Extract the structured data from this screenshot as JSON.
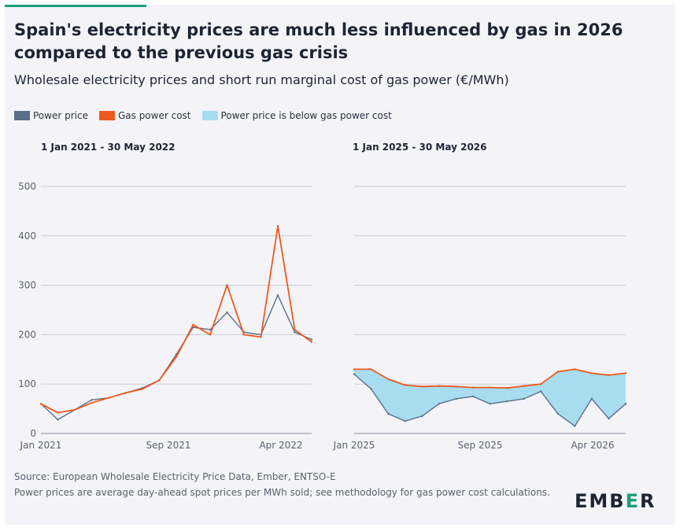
{
  "title": "Spain's electricity prices are much less influenced by gas in 2026 compared to the previous gas crisis",
  "subtitle": "Wholesale electricity prices and short run marginal cost of gas power (€/MWh)",
  "legend": [
    {
      "label": "Power price",
      "color": "#5b6f8b"
    },
    {
      "label": "Gas power cost",
      "color": "#ec5a1e"
    },
    {
      "label": "Power price is below gas power cost",
      "color": "#a8dcef"
    }
  ],
  "footer": {
    "source": "Source: European Wholesale Electricity Price Data, Ember, ENTSO-E",
    "note": "Power prices are average day-ahead spot prices per MWh sold; see methodology for gas power cost calculations."
  },
  "logo": {
    "pre": "EMB",
    "mid": "E",
    "post": "R"
  },
  "chart_data": [
    {
      "type": "line",
      "title": "1 Jan 2021 - 30 May 2022",
      "ylim": [
        0,
        550
      ],
      "yticks": [
        0,
        100,
        200,
        300,
        400,
        500
      ],
      "xticks": [
        "Jan 2021",
        "Sep 2021",
        "Apr 2022"
      ],
      "grid": true,
      "x": [
        "Jan 2021",
        "Feb 2021",
        "Mar 2021",
        "Apr 2021",
        "May 2021",
        "Jun 2021",
        "Jul 2021",
        "Aug 2021",
        "Sep 2021",
        "Oct 2021",
        "Nov 2021",
        "Dec 2021",
        "Jan 2022",
        "Feb 2022",
        "Mar 2022",
        "Apr 2022",
        "May 2022"
      ],
      "series": [
        {
          "name": "Power price",
          "values": [
            60,
            28,
            48,
            68,
            72,
            82,
            92,
            108,
            160,
            215,
            210,
            245,
            205,
            200,
            280,
            205,
            190
          ]
        },
        {
          "name": "Gas power cost",
          "values": [
            60,
            42,
            48,
            62,
            72,
            82,
            90,
            108,
            155,
            220,
            200,
            300,
            200,
            195,
            420,
            210,
            185
          ]
        }
      ]
    },
    {
      "type": "line",
      "title": "1 Jan 2025 - 30 May 2026",
      "ylim": [
        0,
        550
      ],
      "yticks": [
        0,
        100,
        200,
        300,
        400,
        500
      ],
      "xticks": [
        "Jan 2025",
        "Sep 2025",
        "Apr 2026"
      ],
      "grid": true,
      "x": [
        "Jan 2025",
        "Feb 2025",
        "Mar 2025",
        "Apr 2025",
        "May 2025",
        "Jun 2025",
        "Jul 2025",
        "Aug 2025",
        "Sep 2025",
        "Oct 2025",
        "Nov 2025",
        "Dec 2025",
        "Jan 2026",
        "Feb 2026",
        "Mar 2026",
        "Apr 2026",
        "May 2026"
      ],
      "series": [
        {
          "name": "Power price",
          "values": [
            120,
            90,
            40,
            25,
            35,
            60,
            70,
            75,
            60,
            65,
            70,
            85,
            40,
            15,
            70,
            30,
            60
          ]
        },
        {
          "name": "Gas power cost",
          "values": [
            130,
            130,
            110,
            98,
            95,
            96,
            95,
            93,
            93,
            92,
            96,
            100,
            125,
            130,
            122,
            118,
            122
          ]
        }
      ]
    }
  ]
}
